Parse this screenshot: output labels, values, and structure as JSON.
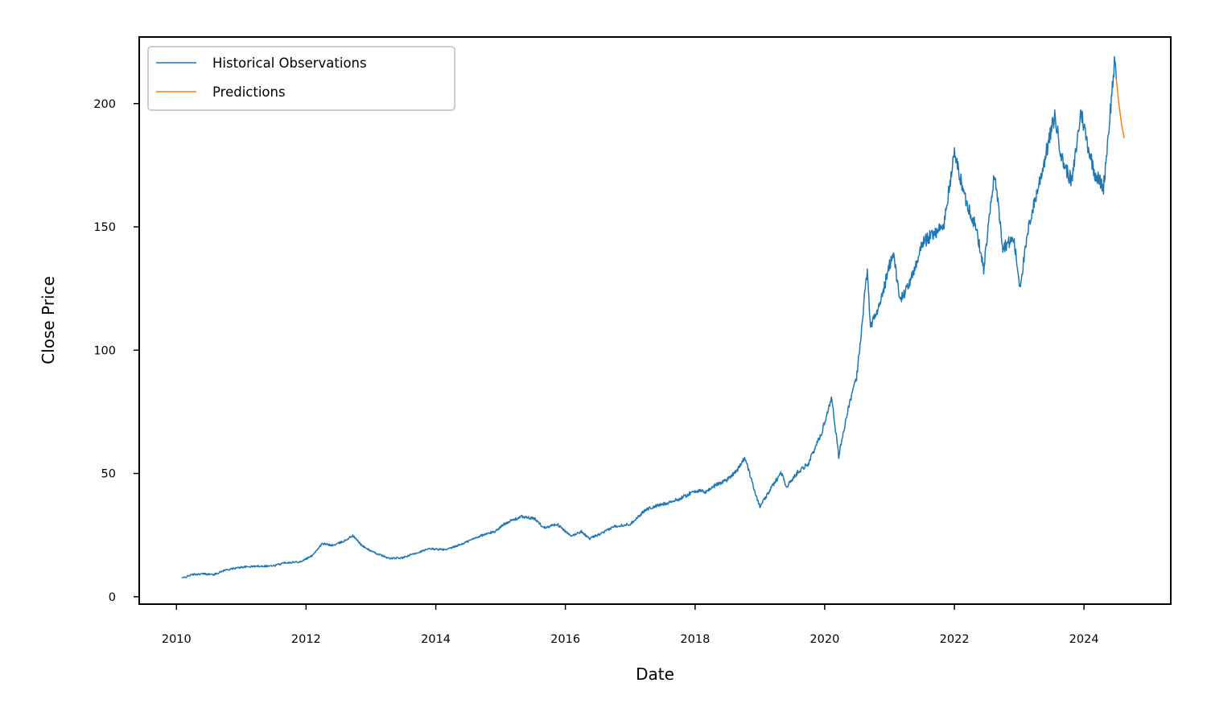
{
  "chart_data": {
    "type": "line",
    "title": "",
    "xlabel": "Date",
    "ylabel": "Close Price",
    "xlim": [
      "2009-06-05",
      "2025-05-04"
    ],
    "ylim": [
      -3,
      227
    ],
    "x_ticks": [
      "2010",
      "2012",
      "2014",
      "2016",
      "2018",
      "2020",
      "2022",
      "2024"
    ],
    "y_ticks": [
      "0",
      "50",
      "100",
      "150",
      "200"
    ],
    "grid": false,
    "legend_position": "upper-left",
    "series": [
      {
        "name": "Historical Observations",
        "color": "#1f77b4",
        "points": [
          [
            "2010-02-01",
            7.5
          ],
          [
            "2010-04-01",
            9.0
          ],
          [
            "2010-06-01",
            9.3
          ],
          [
            "2010-08-01",
            9.0
          ],
          [
            "2010-10-01",
            10.8
          ],
          [
            "2011-01-01",
            12.0
          ],
          [
            "2011-04-01",
            12.4
          ],
          [
            "2011-07-01",
            12.5
          ],
          [
            "2011-09-01",
            13.8
          ],
          [
            "2011-12-01",
            14.2
          ],
          [
            "2012-02-01",
            16.5
          ],
          [
            "2012-04-01",
            21.5
          ],
          [
            "2012-06-01",
            20.8
          ],
          [
            "2012-08-01",
            22.5
          ],
          [
            "2012-09-20",
            24.8
          ],
          [
            "2012-11-15",
            20.5
          ],
          [
            "2013-01-15",
            18.0
          ],
          [
            "2013-04-15",
            15.5
          ],
          [
            "2013-07-01",
            15.8
          ],
          [
            "2013-09-01",
            17.5
          ],
          [
            "2013-12-01",
            19.5
          ],
          [
            "2014-03-01",
            19.0
          ],
          [
            "2014-06-01",
            21.5
          ],
          [
            "2014-09-01",
            24.5
          ],
          [
            "2014-12-01",
            26.5
          ],
          [
            "2015-02-01",
            30.0
          ],
          [
            "2015-05-01",
            32.5
          ],
          [
            "2015-07-15",
            31.5
          ],
          [
            "2015-09-01",
            28.0
          ],
          [
            "2015-11-15",
            29.5
          ],
          [
            "2016-02-01",
            24.5
          ],
          [
            "2016-04-01",
            26.5
          ],
          [
            "2016-05-15",
            23.5
          ],
          [
            "2016-08-01",
            26.0
          ],
          [
            "2016-10-01",
            28.5
          ],
          [
            "2017-01-01",
            29.5
          ],
          [
            "2017-04-01",
            35.5
          ],
          [
            "2017-07-01",
            37.5
          ],
          [
            "2017-10-01",
            39.5
          ],
          [
            "2018-01-01",
            43.0
          ],
          [
            "2018-03-01",
            42.5
          ],
          [
            "2018-05-01",
            45.5
          ],
          [
            "2018-07-01",
            47.5
          ],
          [
            "2018-09-01",
            52.0
          ],
          [
            "2018-10-10",
            56.5
          ],
          [
            "2018-11-15",
            47.0
          ],
          [
            "2019-01-01",
            36.5
          ],
          [
            "2019-03-01",
            43.5
          ],
          [
            "2019-05-01",
            50.5
          ],
          [
            "2019-06-01",
            44.5
          ],
          [
            "2019-08-01",
            50.5
          ],
          [
            "2019-10-01",
            54.0
          ],
          [
            "2019-12-15",
            66.5
          ],
          [
            "2020-02-10",
            81.0
          ],
          [
            "2020-03-20",
            57.0
          ],
          [
            "2020-05-01",
            72.5
          ],
          [
            "2020-07-01",
            90.0
          ],
          [
            "2020-08-28",
            133.0
          ],
          [
            "2020-09-15",
            110.0
          ],
          [
            "2020-11-01",
            117.0
          ],
          [
            "2021-01-20",
            140.0
          ],
          [
            "2021-03-01",
            120.0
          ],
          [
            "2021-05-01",
            128.0
          ],
          [
            "2021-07-01",
            143.0
          ],
          [
            "2021-09-15",
            148.0
          ],
          [
            "2021-11-01",
            150.0
          ],
          [
            "2022-01-01",
            180.0
          ],
          [
            "2022-03-01",
            162.0
          ],
          [
            "2022-05-01",
            150.0
          ],
          [
            "2022-06-15",
            133.0
          ],
          [
            "2022-08-15",
            172.0
          ],
          [
            "2022-10-01",
            142.0
          ],
          [
            "2022-12-01",
            145.0
          ],
          [
            "2023-01-05",
            126.0
          ],
          [
            "2023-03-01",
            152.0
          ],
          [
            "2023-05-01",
            170.0
          ],
          [
            "2023-07-20",
            195.0
          ],
          [
            "2023-09-01",
            177.0
          ],
          [
            "2023-10-25",
            168.0
          ],
          [
            "2023-12-15",
            197.0
          ],
          [
            "2024-01-20",
            184.0
          ],
          [
            "2024-03-01",
            172.0
          ],
          [
            "2024-04-20",
            166.0
          ],
          [
            "2024-05-20",
            190.0
          ],
          [
            "2024-06-20",
            216.0
          ],
          [
            "2024-07-01",
            210.0
          ]
        ]
      },
      {
        "name": "Predictions",
        "color": "#ff7f0e",
        "points": [
          [
            "2024-07-01",
            210.0
          ],
          [
            "2024-07-15",
            200.0
          ],
          [
            "2024-08-01",
            191.0
          ],
          [
            "2024-08-15",
            186.0
          ]
        ]
      }
    ]
  }
}
